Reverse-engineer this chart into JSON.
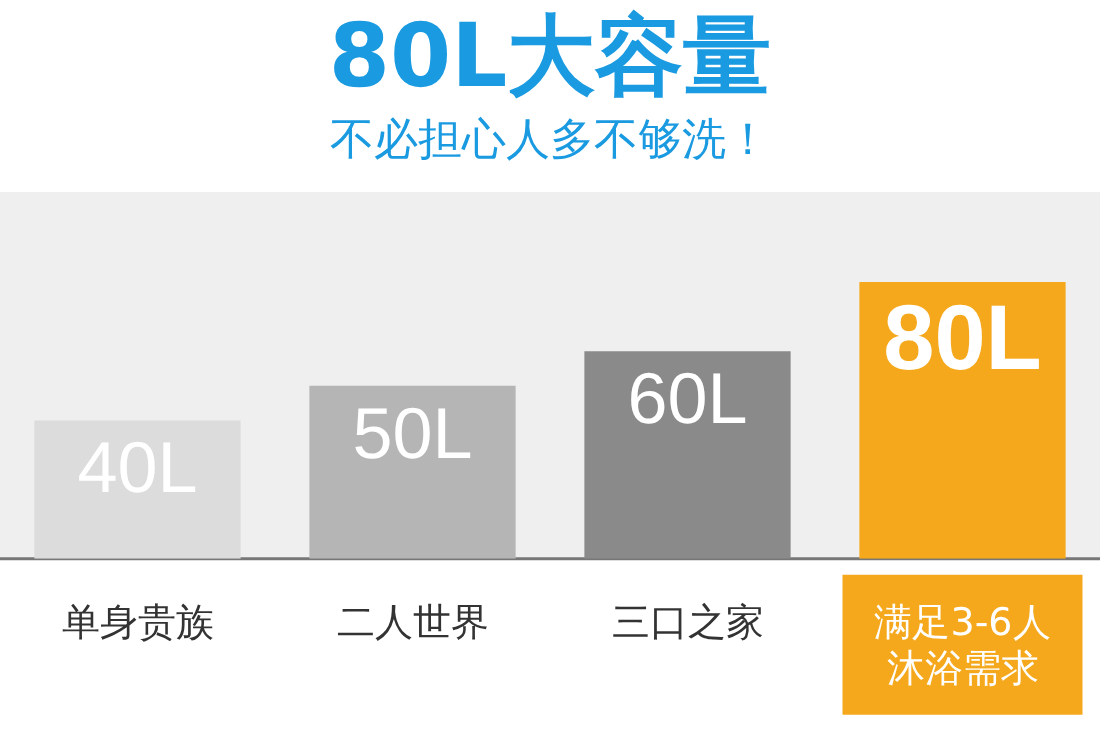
{
  "chart_data": {
    "type": "bar",
    "title": "80L大容量",
    "subtitle": "不必担心人多不够洗！",
    "categories": [
      "单身贵族",
      "二人世界",
      "三口之家",
      "满足3-6人沐浴需求"
    ],
    "values": [
      40,
      50,
      60,
      80
    ],
    "colors": [
      "#dcdcdc",
      "#b5b5b5",
      "#8a8a8a",
      "#f5a81c"
    ],
    "tick_labels": "x",
    "value_labels": [
      "40L",
      "50L",
      "60L",
      "80L"
    ],
    "grid": false,
    "legend": false
  }
}
